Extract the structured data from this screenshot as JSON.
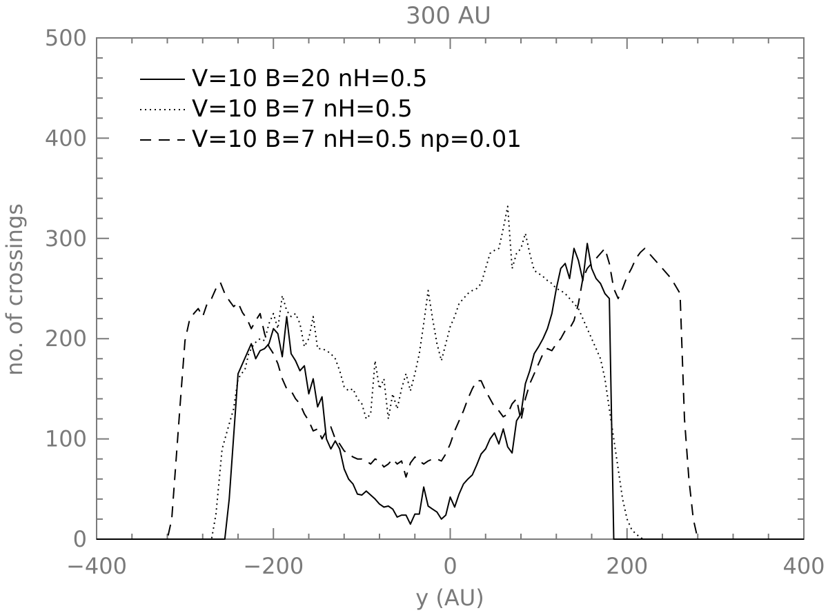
{
  "chart_data": {
    "type": "line",
    "title": "300 AU",
    "xlabel": "y (AU)",
    "ylabel": "no. of crossings",
    "xlim": [
      -400,
      400
    ],
    "ylim": [
      0,
      500
    ],
    "xticks": [
      -400,
      -200,
      0,
      200,
      400
    ],
    "yticks": [
      0,
      100,
      200,
      300,
      400,
      500
    ],
    "xtick_labels": [
      "−400",
      "−200",
      "0",
      "200",
      "400"
    ],
    "ytick_labels": [
      "0",
      "100",
      "200",
      "300",
      "400",
      "500"
    ],
    "grid": false,
    "legend_position": "top-left",
    "series": [
      {
        "name": "V=10 B=20 nH=0.5",
        "style": "solid",
        "color": "#000000",
        "x": [
          -400,
          -255,
          -250,
          -240,
          -230,
          -225,
          -220,
          -215,
          -210,
          -205,
          -200,
          -195,
          -190,
          -185,
          -180,
          -175,
          -170,
          -165,
          -160,
          -155,
          -150,
          -145,
          -140,
          -135,
          -130,
          -125,
          -120,
          -115,
          -110,
          -105,
          -100,
          -95,
          -90,
          -85,
          -80,
          -75,
          -70,
          -65,
          -60,
          -55,
          -50,
          -45,
          -40,
          -35,
          -30,
          -25,
          -20,
          -15,
          -10,
          -5,
          0,
          5,
          10,
          15,
          20,
          25,
          30,
          35,
          40,
          45,
          50,
          55,
          60,
          65,
          70,
          75,
          80,
          85,
          90,
          95,
          100,
          105,
          110,
          115,
          120,
          125,
          130,
          135,
          140,
          145,
          150,
          155,
          160,
          165,
          170,
          175,
          180,
          185,
          190,
          195,
          200,
          205,
          210,
          215,
          220,
          225,
          230,
          235,
          240,
          400
        ],
        "y": [
          0,
          0,
          40,
          165,
          185,
          195,
          180,
          188,
          190,
          195,
          210,
          205,
          182,
          222,
          185,
          178,
          168,
          173,
          145,
          160,
          132,
          142,
          100,
          90,
          98,
          90,
          70,
          60,
          55,
          45,
          44,
          48,
          44,
          40,
          35,
          32,
          33,
          30,
          22,
          24,
          24,
          15,
          25,
          25,
          52,
          33,
          30,
          27,
          20,
          24,
          42,
          32,
          45,
          55,
          60,
          64,
          74,
          85,
          90,
          100,
          106,
          95,
          110,
          92,
          86,
          118,
          125,
          155,
          168,
          185,
          192,
          200,
          210,
          225,
          250,
          270,
          275,
          260,
          290,
          278,
          258,
          295,
          270,
          260,
          255,
          245,
          240,
          0,
          0,
          0,
          0,
          0,
          0,
          0,
          0,
          0,
          0,
          0,
          0,
          0
        ]
      },
      {
        "name": "V=10 B=7 nH=0.5",
        "style": "dotted",
        "color": "#000000",
        "x": [
          -400,
          -270,
          -265,
          -258,
          -250,
          -245,
          -240,
          -232,
          -228,
          -222,
          -215,
          -210,
          -205,
          -200,
          -195,
          -190,
          -185,
          -180,
          -175,
          -170,
          -165,
          -160,
          -155,
          -150,
          -145,
          -140,
          -135,
          -130,
          -125,
          -120,
          -115,
          -110,
          -105,
          -100,
          -95,
          -90,
          -85,
          -80,
          -75,
          -70,
          -65,
          -60,
          -55,
          -50,
          -45,
          -40,
          -35,
          -30,
          -25,
          -20,
          -15,
          -10,
          -5,
          0,
          5,
          10,
          15,
          20,
          25,
          30,
          35,
          40,
          45,
          50,
          55,
          60,
          65,
          70,
          75,
          80,
          85,
          90,
          95,
          100,
          105,
          110,
          115,
          120,
          125,
          130,
          135,
          140,
          145,
          150,
          155,
          160,
          165,
          170,
          175,
          180,
          185,
          190,
          195,
          200,
          205,
          210,
          215,
          218,
          220,
          225,
          400
        ],
        "y": [
          0,
          0,
          25,
          90,
          115,
          130,
          160,
          170,
          185,
          195,
          200,
          198,
          215,
          225,
          210,
          243,
          228,
          222,
          225,
          215,
          192,
          200,
          222,
          190,
          190,
          188,
          185,
          180,
          168,
          152,
          148,
          150,
          140,
          135,
          120,
          125,
          178,
          150,
          160,
          120,
          145,
          130,
          150,
          165,
          148,
          165,
          185,
          215,
          248,
          220,
          195,
          178,
          195,
          212,
          222,
          235,
          240,
          245,
          248,
          250,
          255,
          270,
          285,
          288,
          290,
          310,
          332,
          270,
          285,
          290,
          305,
          285,
          268,
          265,
          262,
          258,
          255,
          250,
          248,
          245,
          240,
          235,
          230,
          220,
          210,
          200,
          190,
          180,
          160,
          130,
          100,
          70,
          40,
          20,
          10,
          5,
          2,
          0,
          0,
          0,
          0
        ]
      },
      {
        "name": "V=10 B=7 nH=0.5 np=0.01",
        "style": "dashed",
        "color": "#000000",
        "x": [
          -400,
          -320,
          -315,
          -310,
          -305,
          -300,
          -295,
          -290,
          -285,
          -280,
          -275,
          -270,
          -265,
          -260,
          -255,
          -250,
          -245,
          -240,
          -235,
          -230,
          -225,
          -220,
          -215,
          -210,
          -205,
          -200,
          -195,
          -190,
          -185,
          -180,
          -175,
          -170,
          -165,
          -160,
          -155,
          -150,
          -145,
          -140,
          -135,
          -130,
          -125,
          -120,
          -115,
          -110,
          -105,
          -100,
          -95,
          -90,
          -85,
          -80,
          -75,
          -70,
          -65,
          -60,
          -55,
          -50,
          -45,
          -40,
          -35,
          -30,
          -25,
          -20,
          -15,
          -10,
          -5,
          0,
          5,
          10,
          15,
          20,
          25,
          30,
          35,
          40,
          45,
          50,
          55,
          60,
          65,
          70,
          75,
          80,
          85,
          90,
          95,
          100,
          105,
          110,
          115,
          120,
          125,
          130,
          135,
          140,
          145,
          150,
          155,
          160,
          165,
          170,
          175,
          180,
          185,
          190,
          195,
          200,
          205,
          210,
          215,
          220,
          225,
          230,
          240,
          250,
          260,
          265,
          270,
          275,
          280,
          400
        ],
        "y": [
          0,
          0,
          20,
          80,
          140,
          198,
          218,
          225,
          230,
          222,
          235,
          240,
          250,
          256,
          245,
          238,
          232,
          236,
          226,
          220,
          210,
          218,
          225,
          205,
          192,
          185,
          175,
          160,
          150,
          148,
          140,
          135,
          125,
          118,
          108,
          110,
          100,
          108,
          112,
          100,
          95,
          88,
          85,
          82,
          80,
          80,
          78,
          75,
          80,
          78,
          72,
          75,
          80,
          75,
          78,
          62,
          76,
          82,
          78,
          75,
          78,
          80,
          80,
          78,
          85,
          95,
          108,
          118,
          128,
          140,
          150,
          158,
          158,
          148,
          140,
          132,
          128,
          122,
          125,
          135,
          140,
          118,
          140,
          155,
          165,
          175,
          185,
          190,
          188,
          195,
          200,
          208,
          210,
          218,
          235,
          260,
          270,
          275,
          280,
          285,
          290,
          275,
          250,
          240,
          250,
          262,
          270,
          280,
          286,
          290,
          285,
          280,
          270,
          260,
          245,
          120,
          60,
          20,
          0,
          0
        ]
      }
    ]
  }
}
